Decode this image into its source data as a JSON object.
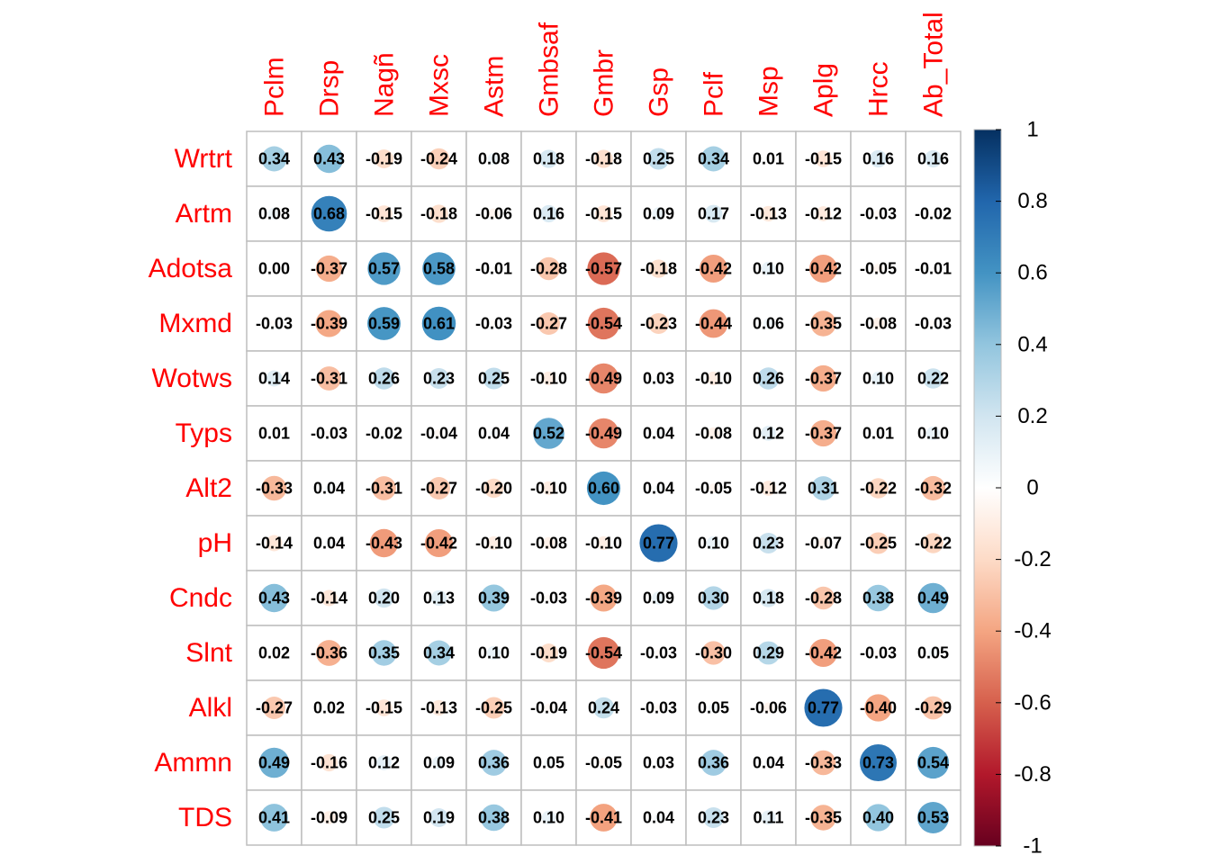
{
  "chart_data": {
    "type": "heatmap",
    "subtype": "correlation-circle",
    "columns": [
      "Pclm",
      "Drsp",
      "Nagñ",
      "Mxsc",
      "Astm",
      "Gmbsaf",
      "Gmbr",
      "Gsp",
      "Pclf",
      "Msp",
      "Aplg",
      "Hrcc",
      "Ab_Total"
    ],
    "rows": [
      "Wrtrt",
      "Artm",
      "Adotsa",
      "Mxmd",
      "Wotws",
      "Typs",
      "Alt2",
      "pH",
      "Cndc",
      "Slnt",
      "Alkl",
      "Ammn",
      "TDS"
    ],
    "values": [
      [
        0.34,
        0.43,
        -0.19,
        -0.24,
        0.08,
        0.18,
        -0.18,
        0.25,
        0.34,
        0.01,
        -0.15,
        0.16,
        0.16
      ],
      [
        0.08,
        0.68,
        -0.15,
        -0.18,
        -0.06,
        0.16,
        -0.15,
        0.09,
        0.17,
        -0.13,
        -0.12,
        -0.03,
        -0.02
      ],
      [
        0.0,
        -0.37,
        0.57,
        0.58,
        -0.01,
        -0.28,
        -0.57,
        -0.18,
        -0.42,
        0.1,
        -0.42,
        -0.05,
        -0.01
      ],
      [
        -0.03,
        -0.39,
        0.59,
        0.61,
        -0.03,
        -0.27,
        -0.54,
        -0.23,
        -0.44,
        0.06,
        -0.35,
        -0.08,
        -0.03
      ],
      [
        0.14,
        -0.31,
        0.26,
        0.23,
        0.25,
        -0.1,
        -0.49,
        0.03,
        -0.1,
        0.26,
        -0.37,
        0.1,
        0.22
      ],
      [
        0.01,
        -0.03,
        -0.02,
        -0.04,
        0.04,
        0.52,
        -0.49,
        0.04,
        -0.08,
        0.12,
        -0.37,
        0.01,
        0.1
      ],
      [
        -0.33,
        0.04,
        -0.31,
        -0.27,
        -0.2,
        -0.1,
        0.6,
        0.04,
        -0.05,
        -0.12,
        0.31,
        -0.22,
        -0.32
      ],
      [
        -0.14,
        0.04,
        -0.43,
        -0.42,
        -0.1,
        -0.08,
        -0.1,
        0.77,
        0.1,
        0.23,
        -0.07,
        -0.25,
        -0.22
      ],
      [
        0.43,
        -0.14,
        0.2,
        0.13,
        0.39,
        -0.03,
        -0.39,
        0.09,
        0.3,
        0.18,
        -0.28,
        0.38,
        0.49
      ],
      [
        0.02,
        -0.36,
        0.35,
        0.34,
        0.1,
        -0.19,
        -0.54,
        -0.03,
        -0.3,
        0.29,
        -0.42,
        -0.03,
        0.05
      ],
      [
        -0.27,
        0.02,
        -0.15,
        -0.13,
        -0.25,
        -0.04,
        0.24,
        -0.03,
        0.05,
        -0.06,
        0.77,
        -0.4,
        -0.29
      ],
      [
        0.49,
        -0.16,
        0.12,
        0.09,
        0.36,
        0.05,
        -0.05,
        0.03,
        0.36,
        0.04,
        -0.33,
        0.73,
        0.54
      ],
      [
        0.41,
        -0.09,
        0.25,
        0.19,
        0.38,
        0.1,
        -0.41,
        0.04,
        0.23,
        0.11,
        -0.35,
        0.4,
        0.53
      ]
    ],
    "colorbar": {
      "range": [
        -1,
        1
      ],
      "ticks": [
        1,
        0.8,
        0.6,
        0.4,
        0.2,
        0,
        -0.2,
        -0.4,
        -0.6,
        -0.8,
        -1
      ],
      "tick_labels": [
        "1",
        "0.8",
        "0.6",
        "0.4",
        "0.2",
        "0",
        "-0.2",
        "-0.4",
        "-0.6",
        "-0.8",
        "-1"
      ],
      "colors": [
        "#67001F",
        "#B2182B",
        "#D6604D",
        "#F4A582",
        "#FDDBC7",
        "#FFFFFF",
        "#D1E5F0",
        "#92C5DE",
        "#4393C3",
        "#2166AC",
        "#053061"
      ]
    },
    "label_color": "#FF0000",
    "grid_color": "#BEBEBE"
  }
}
